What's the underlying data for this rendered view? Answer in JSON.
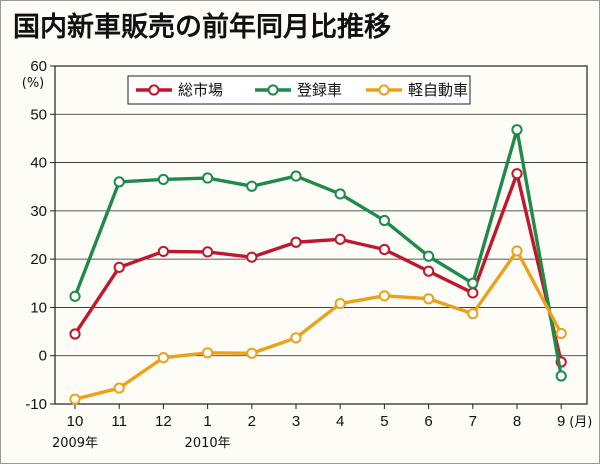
{
  "chart_data": {
    "type": "line",
    "title": "国内新車販売の前年同月比推移",
    "ylabel_unit": "(%)",
    "xlabel_unit": "(月)",
    "categories": [
      "10",
      "11",
      "12",
      "1",
      "2",
      "3",
      "4",
      "5",
      "6",
      "7",
      "8",
      "9"
    ],
    "year_labels": [
      "2009年",
      "2010年"
    ],
    "ylim": [
      -10,
      60
    ],
    "yticks": [
      -10,
      0,
      10,
      20,
      30,
      40,
      50,
      60
    ],
    "grid": true,
    "legend_position": "top-center",
    "series": [
      {
        "name": "総市場",
        "color": "#c0172c",
        "values": [
          4.5,
          18.3,
          21.6,
          21.5,
          20.4,
          23.5,
          24.1,
          22.0,
          17.5,
          13.0,
          37.7,
          -1.3
        ]
      },
      {
        "name": "登録車",
        "color": "#1f8a4a",
        "values": [
          12.3,
          36.0,
          36.5,
          36.8,
          35.1,
          37.2,
          33.5,
          28.0,
          20.6,
          15.0,
          46.8,
          -4.2
        ]
      },
      {
        "name": "軽自動車",
        "color": "#eba21b",
        "values": [
          -9.0,
          -6.7,
          -0.4,
          0.6,
          0.5,
          3.7,
          10.8,
          12.4,
          11.8,
          8.7,
          21.7,
          4.6
        ]
      }
    ]
  }
}
